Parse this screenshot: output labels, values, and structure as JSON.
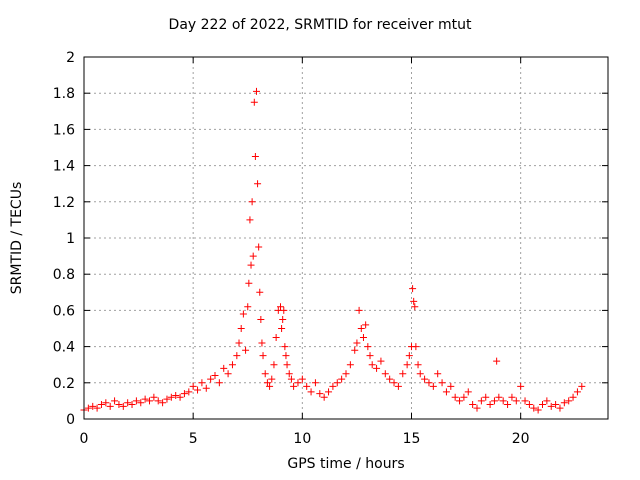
{
  "chart_data": {
    "type": "scatter",
    "title": "Day 222 of 2022, SRMTID for receiver mtut",
    "xlabel": "GPS time / hours",
    "ylabel": "SRMTID / TECUs",
    "xlim": [
      0,
      24
    ],
    "ylim": [
      0,
      2
    ],
    "xticks": [
      0,
      5,
      10,
      15,
      20
    ],
    "yticks": [
      0,
      0.2,
      0.4,
      0.6,
      0.8,
      1,
      1.2,
      1.4,
      1.6,
      1.8,
      2
    ],
    "xtick_labels": [
      "0",
      "5",
      "10",
      "15",
      "20"
    ],
    "ytick_labels": [
      "0",
      "0.2",
      "0.4",
      "0.6",
      "0.8",
      "1",
      "1.2",
      "1.4",
      "1.6",
      "1.8",
      "2"
    ],
    "grid": true,
    "marker": "+",
    "series": [
      {
        "name": "SRMTID",
        "color": "#ff0000",
        "x": [
          0.0,
          0.2,
          0.4,
          0.6,
          0.8,
          1.0,
          1.2,
          1.4,
          1.6,
          1.8,
          2.0,
          2.2,
          2.4,
          2.6,
          2.8,
          3.0,
          3.2,
          3.4,
          3.6,
          3.8,
          4.0,
          4.2,
          4.4,
          4.6,
          4.8,
          5.0,
          5.2,
          5.4,
          5.6,
          5.8,
          6.0,
          6.2,
          6.4,
          6.6,
          6.8,
          7.0,
          7.1,
          7.2,
          7.3,
          7.4,
          7.5,
          7.55,
          7.6,
          7.65,
          7.7,
          7.75,
          7.8,
          7.85,
          7.9,
          7.95,
          8.0,
          8.05,
          8.1,
          8.15,
          8.2,
          8.3,
          8.4,
          8.5,
          8.6,
          8.7,
          8.8,
          8.9,
          9.0,
          9.05,
          9.1,
          9.15,
          9.2,
          9.25,
          9.3,
          9.4,
          9.5,
          9.6,
          9.8,
          10.0,
          10.2,
          10.4,
          10.6,
          10.8,
          11.0,
          11.2,
          11.4,
          11.6,
          11.8,
          12.0,
          12.2,
          12.4,
          12.5,
          12.6,
          12.7,
          12.8,
          12.9,
          13.0,
          13.1,
          13.2,
          13.4,
          13.6,
          13.8,
          14.0,
          14.2,
          14.4,
          14.6,
          14.8,
          14.9,
          15.0,
          15.05,
          15.1,
          15.15,
          15.2,
          15.3,
          15.4,
          15.6,
          15.8,
          16.0,
          16.2,
          16.4,
          16.6,
          16.8,
          17.0,
          17.2,
          17.4,
          17.6,
          17.8,
          18.0,
          18.2,
          18.4,
          18.6,
          18.8,
          18.9,
          19.0,
          19.2,
          19.4,
          19.6,
          19.8,
          20.0,
          20.2,
          20.4,
          20.6,
          20.8,
          21.0,
          21.2,
          21.4,
          21.6,
          21.8,
          22.0,
          22.2,
          22.4,
          22.6,
          22.8
        ],
        "y": [
          0.05,
          0.06,
          0.07,
          0.06,
          0.08,
          0.09,
          0.07,
          0.1,
          0.08,
          0.07,
          0.09,
          0.08,
          0.1,
          0.09,
          0.11,
          0.1,
          0.12,
          0.1,
          0.09,
          0.11,
          0.12,
          0.13,
          0.12,
          0.14,
          0.15,
          0.18,
          0.16,
          0.2,
          0.17,
          0.22,
          0.24,
          0.2,
          0.28,
          0.25,
          0.3,
          0.35,
          0.42,
          0.5,
          0.58,
          0.38,
          0.62,
          0.75,
          1.1,
          0.85,
          1.2,
          0.9,
          1.75,
          1.45,
          1.81,
          1.3,
          0.95,
          0.7,
          0.55,
          0.42,
          0.35,
          0.25,
          0.2,
          0.18,
          0.22,
          0.3,
          0.45,
          0.6,
          0.62,
          0.5,
          0.55,
          0.6,
          0.4,
          0.35,
          0.3,
          0.25,
          0.22,
          0.18,
          0.2,
          0.22,
          0.18,
          0.15,
          0.2,
          0.14,
          0.12,
          0.15,
          0.18,
          0.2,
          0.22,
          0.25,
          0.3,
          0.38,
          0.42,
          0.6,
          0.5,
          0.45,
          0.52,
          0.4,
          0.35,
          0.3,
          0.28,
          0.32,
          0.25,
          0.22,
          0.2,
          0.18,
          0.25,
          0.3,
          0.35,
          0.4,
          0.72,
          0.65,
          0.62,
          0.4,
          0.3,
          0.25,
          0.22,
          0.2,
          0.18,
          0.25,
          0.2,
          0.15,
          0.18,
          0.12,
          0.1,
          0.12,
          0.15,
          0.08,
          0.06,
          0.1,
          0.12,
          0.08,
          0.1,
          0.32,
          0.12,
          0.1,
          0.08,
          0.12,
          0.1,
          0.18,
          0.1,
          0.08,
          0.06,
          0.05,
          0.08,
          0.1,
          0.07,
          0.08,
          0.06,
          0.09,
          0.1,
          0.12,
          0.15,
          0.18
        ]
      }
    ]
  }
}
